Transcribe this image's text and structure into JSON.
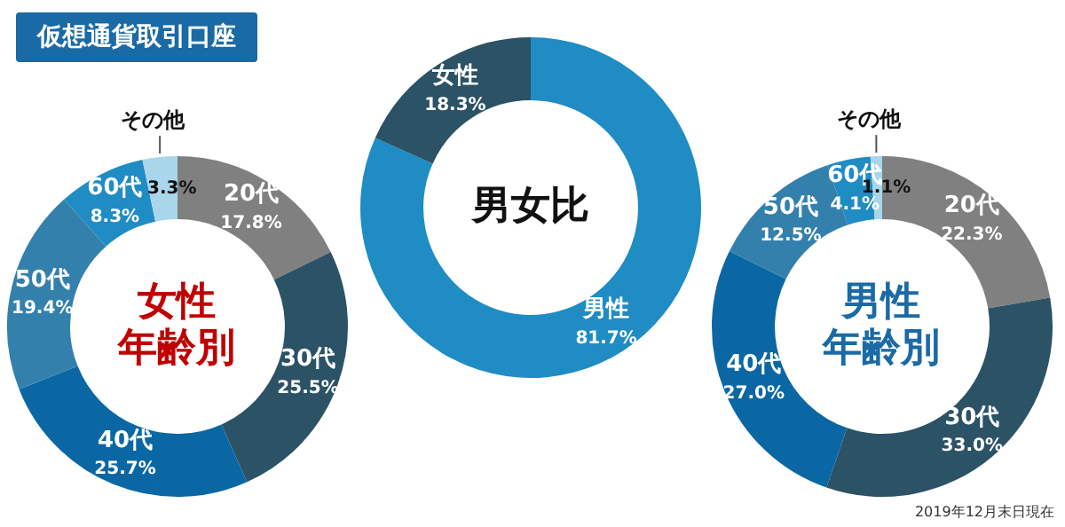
{
  "chart_data": [
    {
      "type": "donut",
      "title": "女性年齢別",
      "annotations": [
        "仮想通貨取引口座"
      ],
      "categories": [
        "20代",
        "30代",
        "40代",
        "50代",
        "60代",
        "その他"
      ],
      "values": [
        17.8,
        25.5,
        25.7,
        19.4,
        8.3,
        3.3
      ],
      "value_labels": [
        "17.8%",
        "25.5%",
        "25.7%",
        "19.4%",
        "8.3%",
        "3.3%"
      ],
      "colors": [
        "#808080",
        "#2c5266",
        "#0a67a3",
        "#3480ad",
        "#1f8cc4",
        "#a9d6ea"
      ]
    },
    {
      "type": "donut",
      "title": "男女比",
      "categories": [
        "男性",
        "女性"
      ],
      "values": [
        81.7,
        18.3
      ],
      "value_labels": [
        "81.7%",
        "18.3%"
      ],
      "colors": [
        "#1f8cc4",
        "#2c5266"
      ]
    },
    {
      "type": "donut",
      "title": "男性年齢別",
      "annotations": [
        "2019年12月末日現在"
      ],
      "categories": [
        "20代",
        "30代",
        "40代",
        "50代",
        "60代",
        "その他"
      ],
      "values": [
        22.3,
        33.0,
        27.0,
        12.5,
        4.1,
        1.1
      ],
      "value_labels": [
        "22.3%",
        "33.0%",
        "27.0%",
        "12.5%",
        "4.1%",
        "1.1%"
      ],
      "colors": [
        "#808080",
        "#2c5266",
        "#0a67a3",
        "#3480ad",
        "#1f8cc4",
        "#a9d6ea"
      ]
    }
  ]
}
